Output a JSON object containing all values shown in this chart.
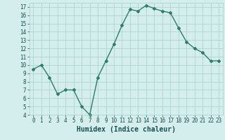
{
  "title": "",
  "xlabel": "Humidex (Indice chaleur)",
  "ylabel": "",
  "x": [
    0,
    1,
    2,
    3,
    4,
    5,
    6,
    7,
    8,
    9,
    10,
    11,
    12,
    13,
    14,
    15,
    16,
    17,
    18,
    19,
    20,
    21,
    22,
    23
  ],
  "y": [
    9.5,
    10.0,
    8.5,
    6.5,
    7.0,
    7.0,
    5.0,
    4.0,
    8.5,
    10.5,
    12.5,
    14.8,
    16.7,
    16.5,
    17.2,
    16.8,
    16.5,
    16.3,
    14.5,
    12.8,
    12.0,
    11.5,
    10.5,
    10.5
  ],
  "line_color": "#2d7d6e",
  "marker": "D",
  "marker_size": 2.0,
  "bg_color": "#d4eeed",
  "grid_color": "#aacece",
  "tick_color": "#1a5050",
  "label_color": "#1a5050",
  "ylim": [
    4,
    17.5
  ],
  "xlim": [
    -0.5,
    23.5
  ],
  "yticks": [
    4,
    5,
    6,
    7,
    8,
    9,
    10,
    11,
    12,
    13,
    14,
    15,
    16,
    17
  ],
  "xticks": [
    0,
    1,
    2,
    3,
    4,
    5,
    6,
    7,
    8,
    9,
    10,
    11,
    12,
    13,
    14,
    15,
    16,
    17,
    18,
    19,
    20,
    21,
    22,
    23
  ],
  "linewidth": 1.0,
  "xlabel_fontsize": 7,
  "tick_fontsize": 5.5
}
